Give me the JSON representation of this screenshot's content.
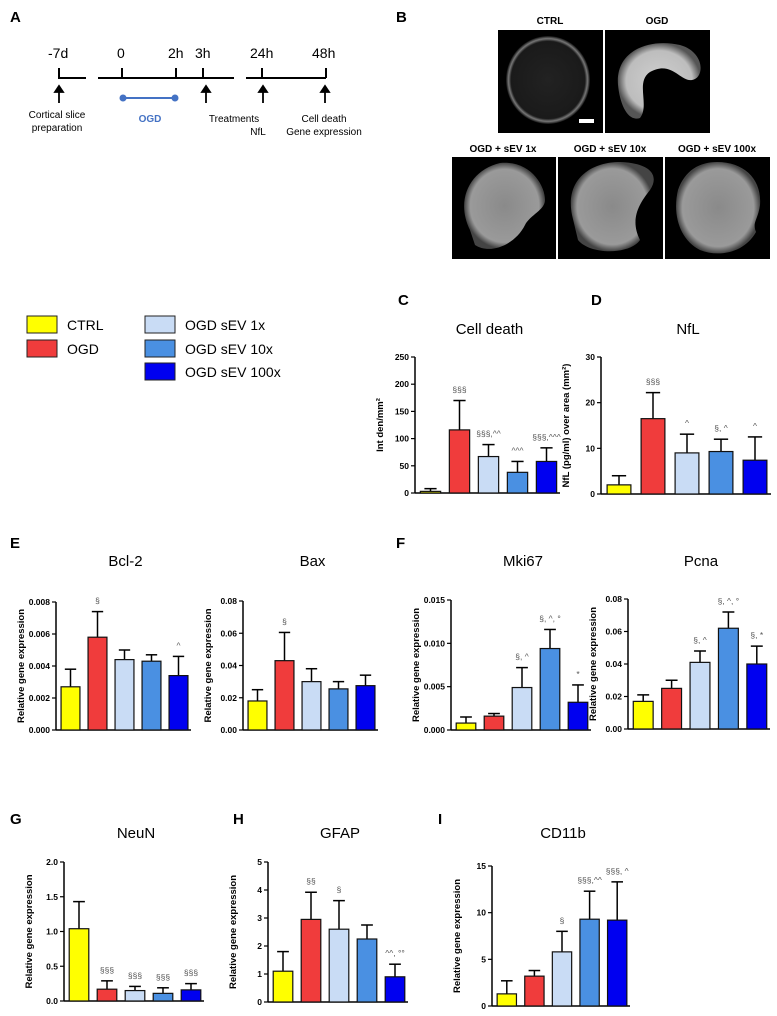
{
  "panel_labels": [
    "A",
    "B",
    "C",
    "D",
    "E",
    "F",
    "G",
    "H",
    "I"
  ],
  "timeline": {
    "ticks": [
      "-7d",
      "0",
      "2h",
      "3h",
      "24h",
      "48h"
    ],
    "events": [
      {
        "line1": "Cortical slice",
        "line2": "preparation"
      },
      {
        "line1": "Treatments",
        "line2": "NfL"
      },
      {
        "line1": "Cell death",
        "line2": "Gene expression"
      }
    ],
    "ogd_label": "OGD",
    "ogd_color": "#4472c4"
  },
  "images": {
    "labels": [
      "CTRL",
      "OGD",
      "OGD + sEV 1x",
      "OGD + sEV 10x",
      "OGD + sEV 100x"
    ]
  },
  "legend": {
    "items": [
      {
        "label": "CTRL",
        "color": "#ffff00"
      },
      {
        "label": "OGD",
        "color": "#f03c3c"
      },
      {
        "label": "OGD sEV 1x",
        "color": "#c9dcf5"
      },
      {
        "label": "OGD sEV 10x",
        "color": "#4a90e2"
      },
      {
        "label": "OGD sEV 100x",
        "color": "#0000f0"
      }
    ]
  },
  "chart_data": [
    {
      "id": "C",
      "type": "bar",
      "title": "Cell death",
      "ylabel": "Int den/mm²",
      "ylim": [
        0,
        250
      ],
      "yticks": [
        "0",
        "50",
        "100",
        "150",
        "200",
        "250"
      ],
      "values": [
        3,
        116,
        67,
        38,
        58
      ],
      "err_top": [
        8,
        170,
        89,
        58,
        83
      ],
      "annotations": [
        "",
        "§§§",
        "§§§,^^",
        "^^^",
        "§§§,^^^"
      ]
    },
    {
      "id": "D",
      "type": "bar",
      "title": "NfL",
      "ylabel": "NfL (pg/ml) over area (mm²)",
      "ylim": [
        0,
        30
      ],
      "yticks": [
        "0",
        "10",
        "20",
        "30"
      ],
      "values": [
        2,
        16.5,
        9,
        9.3,
        7.4
      ],
      "err_top": [
        4,
        22.2,
        13.1,
        12,
        12.5
      ],
      "annotations": [
        "",
        "§§§",
        "^",
        "§, ^",
        "^"
      ]
    },
    {
      "id": "E1",
      "type": "bar",
      "title": "Bcl-2",
      "ylabel": "Relative gene expression",
      "ylim": [
        0,
        0.008
      ],
      "yticks": [
        "0.000",
        "0.002",
        "0.004",
        "0.006",
        "0.008"
      ],
      "values": [
        0.0027,
        0.0058,
        0.0044,
        0.0043,
        0.0034
      ],
      "err_top": [
        0.0038,
        0.0074,
        0.005,
        0.0047,
        0.0046
      ],
      "annotations": [
        "",
        "§",
        "",
        "",
        "^"
      ]
    },
    {
      "id": "E2",
      "type": "bar",
      "title": "Bax",
      "ylabel": "Relative gene expression",
      "ylim": [
        0,
        0.08
      ],
      "yticks": [
        "0.00",
        "0.02",
        "0.04",
        "0.06",
        "0.08"
      ],
      "values": [
        0.018,
        0.043,
        0.03,
        0.0255,
        0.0275
      ],
      "err_top": [
        0.025,
        0.0605,
        0.038,
        0.03,
        0.034
      ],
      "annotations": [
        "",
        "§",
        "",
        "",
        ""
      ]
    },
    {
      "id": "F1",
      "type": "bar",
      "title": "Mki67",
      "ylabel": "Relative gene expression",
      "ylim": [
        0,
        0.015
      ],
      "yticks": [
        "0.000",
        "0.005",
        "0.010",
        "0.015"
      ],
      "values": [
        0.0008,
        0.0016,
        0.0049,
        0.0094,
        0.0032
      ],
      "err_top": [
        0.0015,
        0.0019,
        0.0072,
        0.0116,
        0.0052
      ],
      "annotations": [
        "",
        "",
        "§, ^",
        "§, ^, °",
        "*"
      ]
    },
    {
      "id": "F2",
      "type": "bar",
      "title": "Pcna",
      "ylabel": "Relative gene expression",
      "ylim": [
        0,
        0.08
      ],
      "yticks": [
        "0.00",
        "0.02",
        "0.04",
        "0.06",
        "0.08"
      ],
      "values": [
        0.017,
        0.025,
        0.041,
        0.062,
        0.04
      ],
      "err_top": [
        0.021,
        0.03,
        0.048,
        0.072,
        0.051
      ],
      "annotations": [
        "",
        "",
        "§, ^",
        "§, ^, °",
        "§, *"
      ]
    },
    {
      "id": "G",
      "type": "bar",
      "title": "NeuN",
      "ylabel": "Relative gene expression",
      "ylim": [
        0,
        2.0
      ],
      "yticks": [
        "0.0",
        "0.5",
        "1.0",
        "1.5",
        "2.0"
      ],
      "values": [
        1.04,
        0.17,
        0.15,
        0.11,
        0.16
      ],
      "err_top": [
        1.43,
        0.29,
        0.21,
        0.19,
        0.25
      ],
      "annotations": [
        "",
        "§§§",
        "§§§",
        "§§§",
        "§§§"
      ]
    },
    {
      "id": "H",
      "type": "bar",
      "title": "GFAP",
      "ylabel": "Relative gene expression",
      "ylim": [
        0,
        5
      ],
      "yticks": [
        "0",
        "1",
        "2",
        "3",
        "4",
        "5"
      ],
      "values": [
        1.1,
        2.95,
        2.6,
        2.25,
        0.9
      ],
      "err_top": [
        1.8,
        3.92,
        3.62,
        2.75,
        1.35
      ],
      "annotations": [
        "",
        "§§",
        "§",
        "",
        "^^, °°"
      ]
    },
    {
      "id": "I",
      "type": "bar",
      "title": "CD11b",
      "ylabel": "Relative gene expression",
      "ylim": [
        0,
        15
      ],
      "yticks": [
        "0",
        "5",
        "10",
        "15"
      ],
      "values": [
        1.3,
        3.2,
        5.8,
        9.3,
        9.2
      ],
      "err_top": [
        2.7,
        3.8,
        8.0,
        12.3,
        13.3
      ],
      "annotations": [
        "",
        "",
        "§",
        "§§§,^^",
        "§§§, ^"
      ]
    }
  ]
}
